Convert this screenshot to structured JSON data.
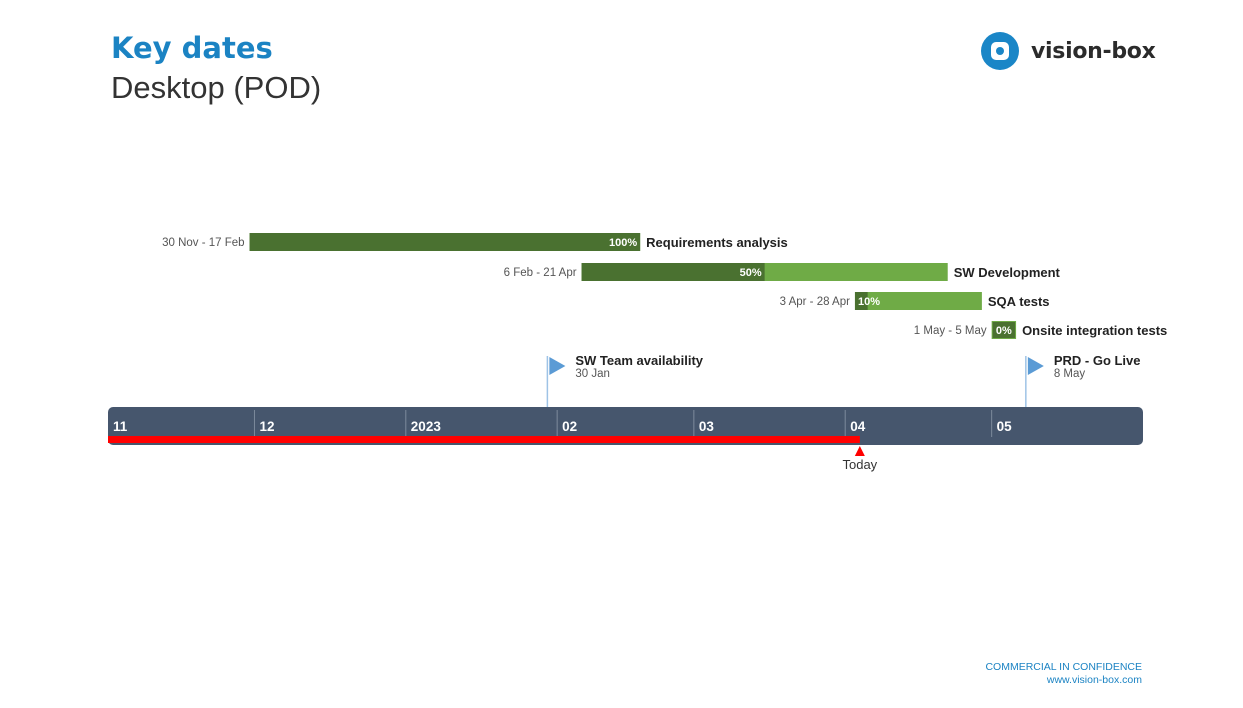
{
  "header": {
    "title": "Key dates",
    "subtitle": "Desktop (POD)"
  },
  "logo": {
    "text": "vision-box",
    "icon": "vision-box-logo-icon"
  },
  "colors": {
    "title": "#1b83c3",
    "done": "#4a7130",
    "remaining": "#6fab46",
    "timeline": "#46566d",
    "today": "#ff0000",
    "milestone": "#5b9bd5"
  },
  "chart_data": {
    "type": "gantt",
    "tasks": [
      {
        "name": "Requirements analysis",
        "range_label": "30 Nov - 17 Feb",
        "start": "2022-11-30",
        "end": "2023-02-17",
        "progress": 100,
        "progress_label": "100%"
      },
      {
        "name": "SW Development",
        "range_label": "6 Feb - 21 Apr",
        "start": "2023-02-06",
        "end": "2023-04-21",
        "progress": 50,
        "progress_label": "50%"
      },
      {
        "name": "SQA tests",
        "range_label": "3 Apr - 28 Apr",
        "start": "2023-04-03",
        "end": "2023-04-28",
        "progress": 10,
        "progress_label": "10%"
      },
      {
        "name": "Onsite integration tests",
        "range_label": "1 May - 5 May",
        "start": "2023-05-01",
        "end": "2023-05-05",
        "progress": 0,
        "progress_label": "0%"
      }
    ],
    "milestones": [
      {
        "name": "SW Team availability",
        "date_label": "30 Jan",
        "date": "2023-01-30"
      },
      {
        "name": "PRD - Go Live",
        "date_label": "8 May",
        "date": "2023-05-08"
      }
    ],
    "timeline": {
      "ticks": [
        {
          "label": "11",
          "date": "2022-11-01"
        },
        {
          "label": "12",
          "date": "2022-12-01"
        },
        {
          "label": "2023",
          "date": "2023-01-01"
        },
        {
          "label": "02",
          "date": "2023-02-01"
        },
        {
          "label": "03",
          "date": "2023-03-01"
        },
        {
          "label": "04",
          "date": "2023-04-01"
        },
        {
          "label": "05",
          "date": "2023-05-01"
        }
      ],
      "start": "2022-11-01",
      "end": "2023-06-01"
    },
    "today": {
      "label": "Today",
      "date": "2023-04-04"
    }
  },
  "footer": {
    "confidentiality": "COMMERCIAL IN CONFIDENCE",
    "website": "www.vision-box.com"
  }
}
